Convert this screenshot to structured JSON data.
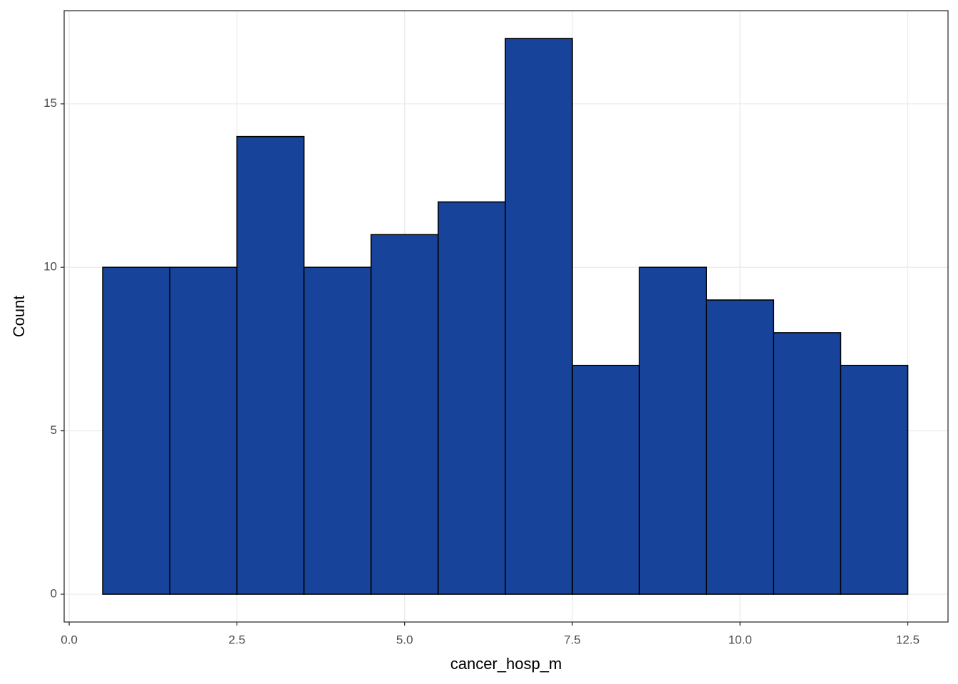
{
  "chart_data": {
    "type": "histogram",
    "bins": [
      0.5,
      1.5,
      2.5,
      3.5,
      4.5,
      5.5,
      6.5,
      7.5,
      8.5,
      9.5,
      10.5,
      11.5,
      12.5
    ],
    "values": [
      10,
      10,
      14,
      10,
      11,
      12,
      17,
      7,
      10,
      9,
      8,
      7
    ],
    "color": "#17449a",
    "edgecolor": "#000000",
    "xlabel": "cancer_hosp_m",
    "ylabel": "Count",
    "xlim": [
      -0.075,
      13.1
    ],
    "ylim": [
      -0.85,
      17.85
    ],
    "xticks": [
      {
        "value": 0,
        "label": "0.0"
      },
      2.5,
      {
        "value": 5,
        "label": "5.0"
      },
      7.5,
      {
        "value": 10,
        "label": "10.0"
      },
      12.5
    ],
    "yticks": [
      0,
      5,
      10,
      15
    ],
    "grid": true
  }
}
